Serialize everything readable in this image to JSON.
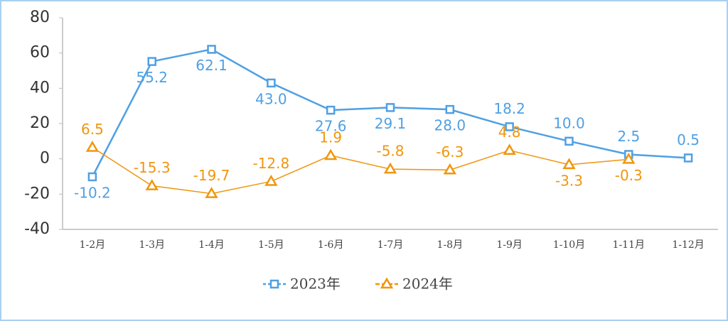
{
  "chart_data": {
    "type": "line",
    "categories": [
      "1-2月",
      "1-3月",
      "1-4月",
      "1-5月",
      "1-6月",
      "1-7月",
      "1-8月",
      "1-9月",
      "1-10月",
      "1-11月",
      "1-12月"
    ],
    "series": [
      {
        "name": "2023年",
        "color": "#4fa0e3",
        "marker": "square",
        "values": [
          -10.2,
          55.2,
          62.1,
          43.0,
          27.6,
          29.1,
          28.0,
          18.2,
          10.0,
          2.5,
          0.5
        ],
        "value_labels": [
          "-10.2",
          "55.2",
          "62.1",
          "43.0",
          "27.6",
          "29.1",
          "28.0",
          "18.2",
          "10.0",
          "2.5",
          "0.5"
        ]
      },
      {
        "name": "2024年",
        "color": "#f0960e",
        "marker": "triangle",
        "values": [
          6.5,
          -15.3,
          -19.7,
          -12.8,
          1.9,
          -5.8,
          -6.3,
          4.8,
          -3.3,
          -0.3,
          null
        ],
        "value_labels": [
          "6.5",
          "-15.3",
          "-19.7",
          "-12.8",
          "1.9",
          "-5.8",
          "-6.3",
          "4.8",
          "-3.3",
          "-0.3",
          null
        ]
      }
    ],
    "ylim": [
      -40,
      80
    ],
    "yticks": [
      -40,
      -20,
      0,
      20,
      40,
      60,
      80
    ],
    "grid": false,
    "legend": "bottom"
  }
}
